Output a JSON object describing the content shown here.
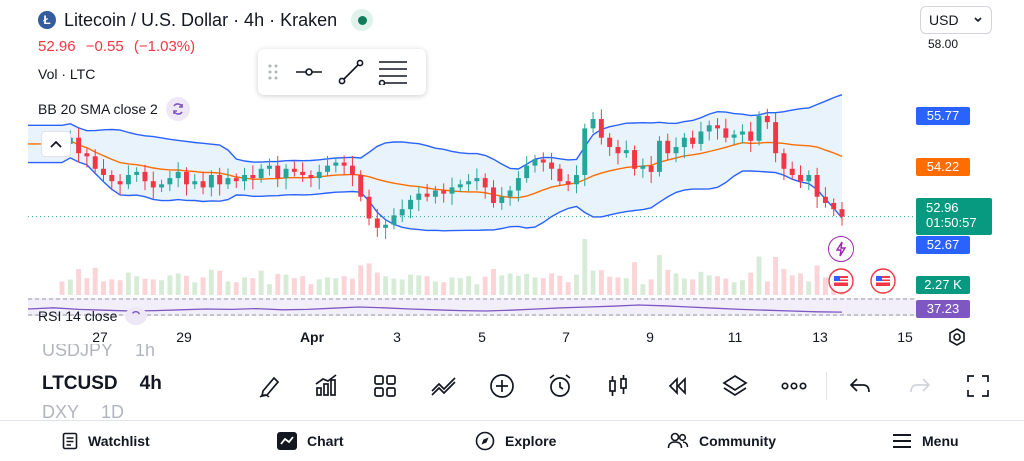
{
  "header": {
    "title": "Litecoin / U.S. Dollar · 4h · Kraken",
    "coin_symbol": "Ł",
    "last_price": "52.96",
    "change": "−0.55",
    "change_pct": "(−1.03%)",
    "currency": "USD"
  },
  "indicators": {
    "volume": "Vol · LTC",
    "bollinger": "BB 20 SMA close 2",
    "rsi": "RSI 14 close"
  },
  "drawing_toolbox": {
    "icons": [
      "drag-handle-icon",
      "horizontal-line-icon",
      "trend-line-icon",
      "fib-retracement-icon"
    ]
  },
  "price_axis": {
    "top_tick": "58.00",
    "bb_upper": "55.77",
    "bb_middle": "54.22",
    "current": "52.96",
    "countdown": "01:50:57",
    "bb_lower": "52.67",
    "volume": "2.27 K",
    "rsi": "37.23"
  },
  "date_axis": [
    "27",
    "29",
    "Apr",
    "3",
    "5",
    "7",
    "9",
    "11",
    "13",
    "15"
  ],
  "symbols": {
    "prev": "USDJPY",
    "prev_interval": "1h",
    "current": "LTCUSD",
    "current_interval": "4h",
    "next": "DXY",
    "next_interval": "1D"
  },
  "bottom_tools": [
    "draw-icon",
    "indicators-icon",
    "templates-icon",
    "compare-icon",
    "add-icon",
    "alert-icon",
    "chart-type-icon",
    "replay-icon",
    "layers-icon",
    "more-icon",
    "undo-icon",
    "redo-icon",
    "fullscreen-icon"
  ],
  "nav": {
    "watchlist": "Watchlist",
    "chart": "Chart",
    "explore": "Explore",
    "community": "Community",
    "menu": "Menu"
  },
  "colors": {
    "up": "#26a69a",
    "down": "#f23645",
    "bb_band": "#2962ff",
    "bb_basis": "#ff6d00",
    "bb_fill": "#e3f0fb",
    "rsi": "#7e57c2"
  },
  "chart_data": {
    "type": "candlestick",
    "symbol": "LTCUSD",
    "interval": "4h",
    "x_ticks": [
      "27",
      "29",
      "Apr",
      "3",
      "5",
      "7",
      "9",
      "11",
      "13",
      "15"
    ],
    "y_ticks": [
      "58.00"
    ],
    "last": 52.96,
    "bb_upper_last": 55.77,
    "bb_basis_last": 54.22,
    "bb_lower_last": 52.67,
    "volume_last": "2.27 K",
    "rsi_last": 37.23,
    "close_series": [
      55.3,
      55.5,
      55.0,
      54.9,
      54.5,
      54.3,
      54.1,
      54.0,
      54.3,
      54.4,
      54.1,
      53.9,
      54.0,
      54.2,
      54.4,
      54.0,
      54.1,
      53.9,
      54.3,
      54.0,
      54.2,
      54.1,
      54.3,
      54.2,
      54.5,
      54.6,
      54.2,
      54.5,
      54.4,
      54.3,
      54.2,
      54.4,
      54.6,
      54.7,
      54.6,
      54.3,
      53.6,
      52.9,
      52.6,
      52.7,
      53.0,
      53.2,
      53.5,
      53.7,
      53.6,
      53.8,
      53.7,
      53.9,
      54.0,
      54.1,
      54.2,
      53.9,
      53.4,
      53.6,
      53.8,
      54.2,
      54.6,
      54.8,
      54.7,
      54.5,
      54.1,
      54.0,
      54.3,
      55.8,
      56.1,
      55.5,
      55.2,
      55.0,
      55.1,
      54.5,
      54.6,
      54.4,
      55.4,
      55.0,
      55.2,
      55.5,
      55.3,
      55.7,
      55.9,
      55.8,
      55.5,
      55.6,
      55.7,
      55.4,
      56.2,
      56.0,
      55.0,
      54.5,
      54.3,
      54.1,
      54.3,
      53.6,
      53.4,
      53.2,
      52.96
    ],
    "rsi_series": [
      45,
      48,
      44,
      42,
      40,
      41,
      43,
      45,
      44,
      46,
      43,
      44,
      47,
      50,
      48,
      45,
      43,
      41,
      40,
      42,
      45,
      48,
      50,
      52,
      55,
      53,
      50,
      47,
      44,
      42,
      40,
      38,
      37.23
    ]
  }
}
